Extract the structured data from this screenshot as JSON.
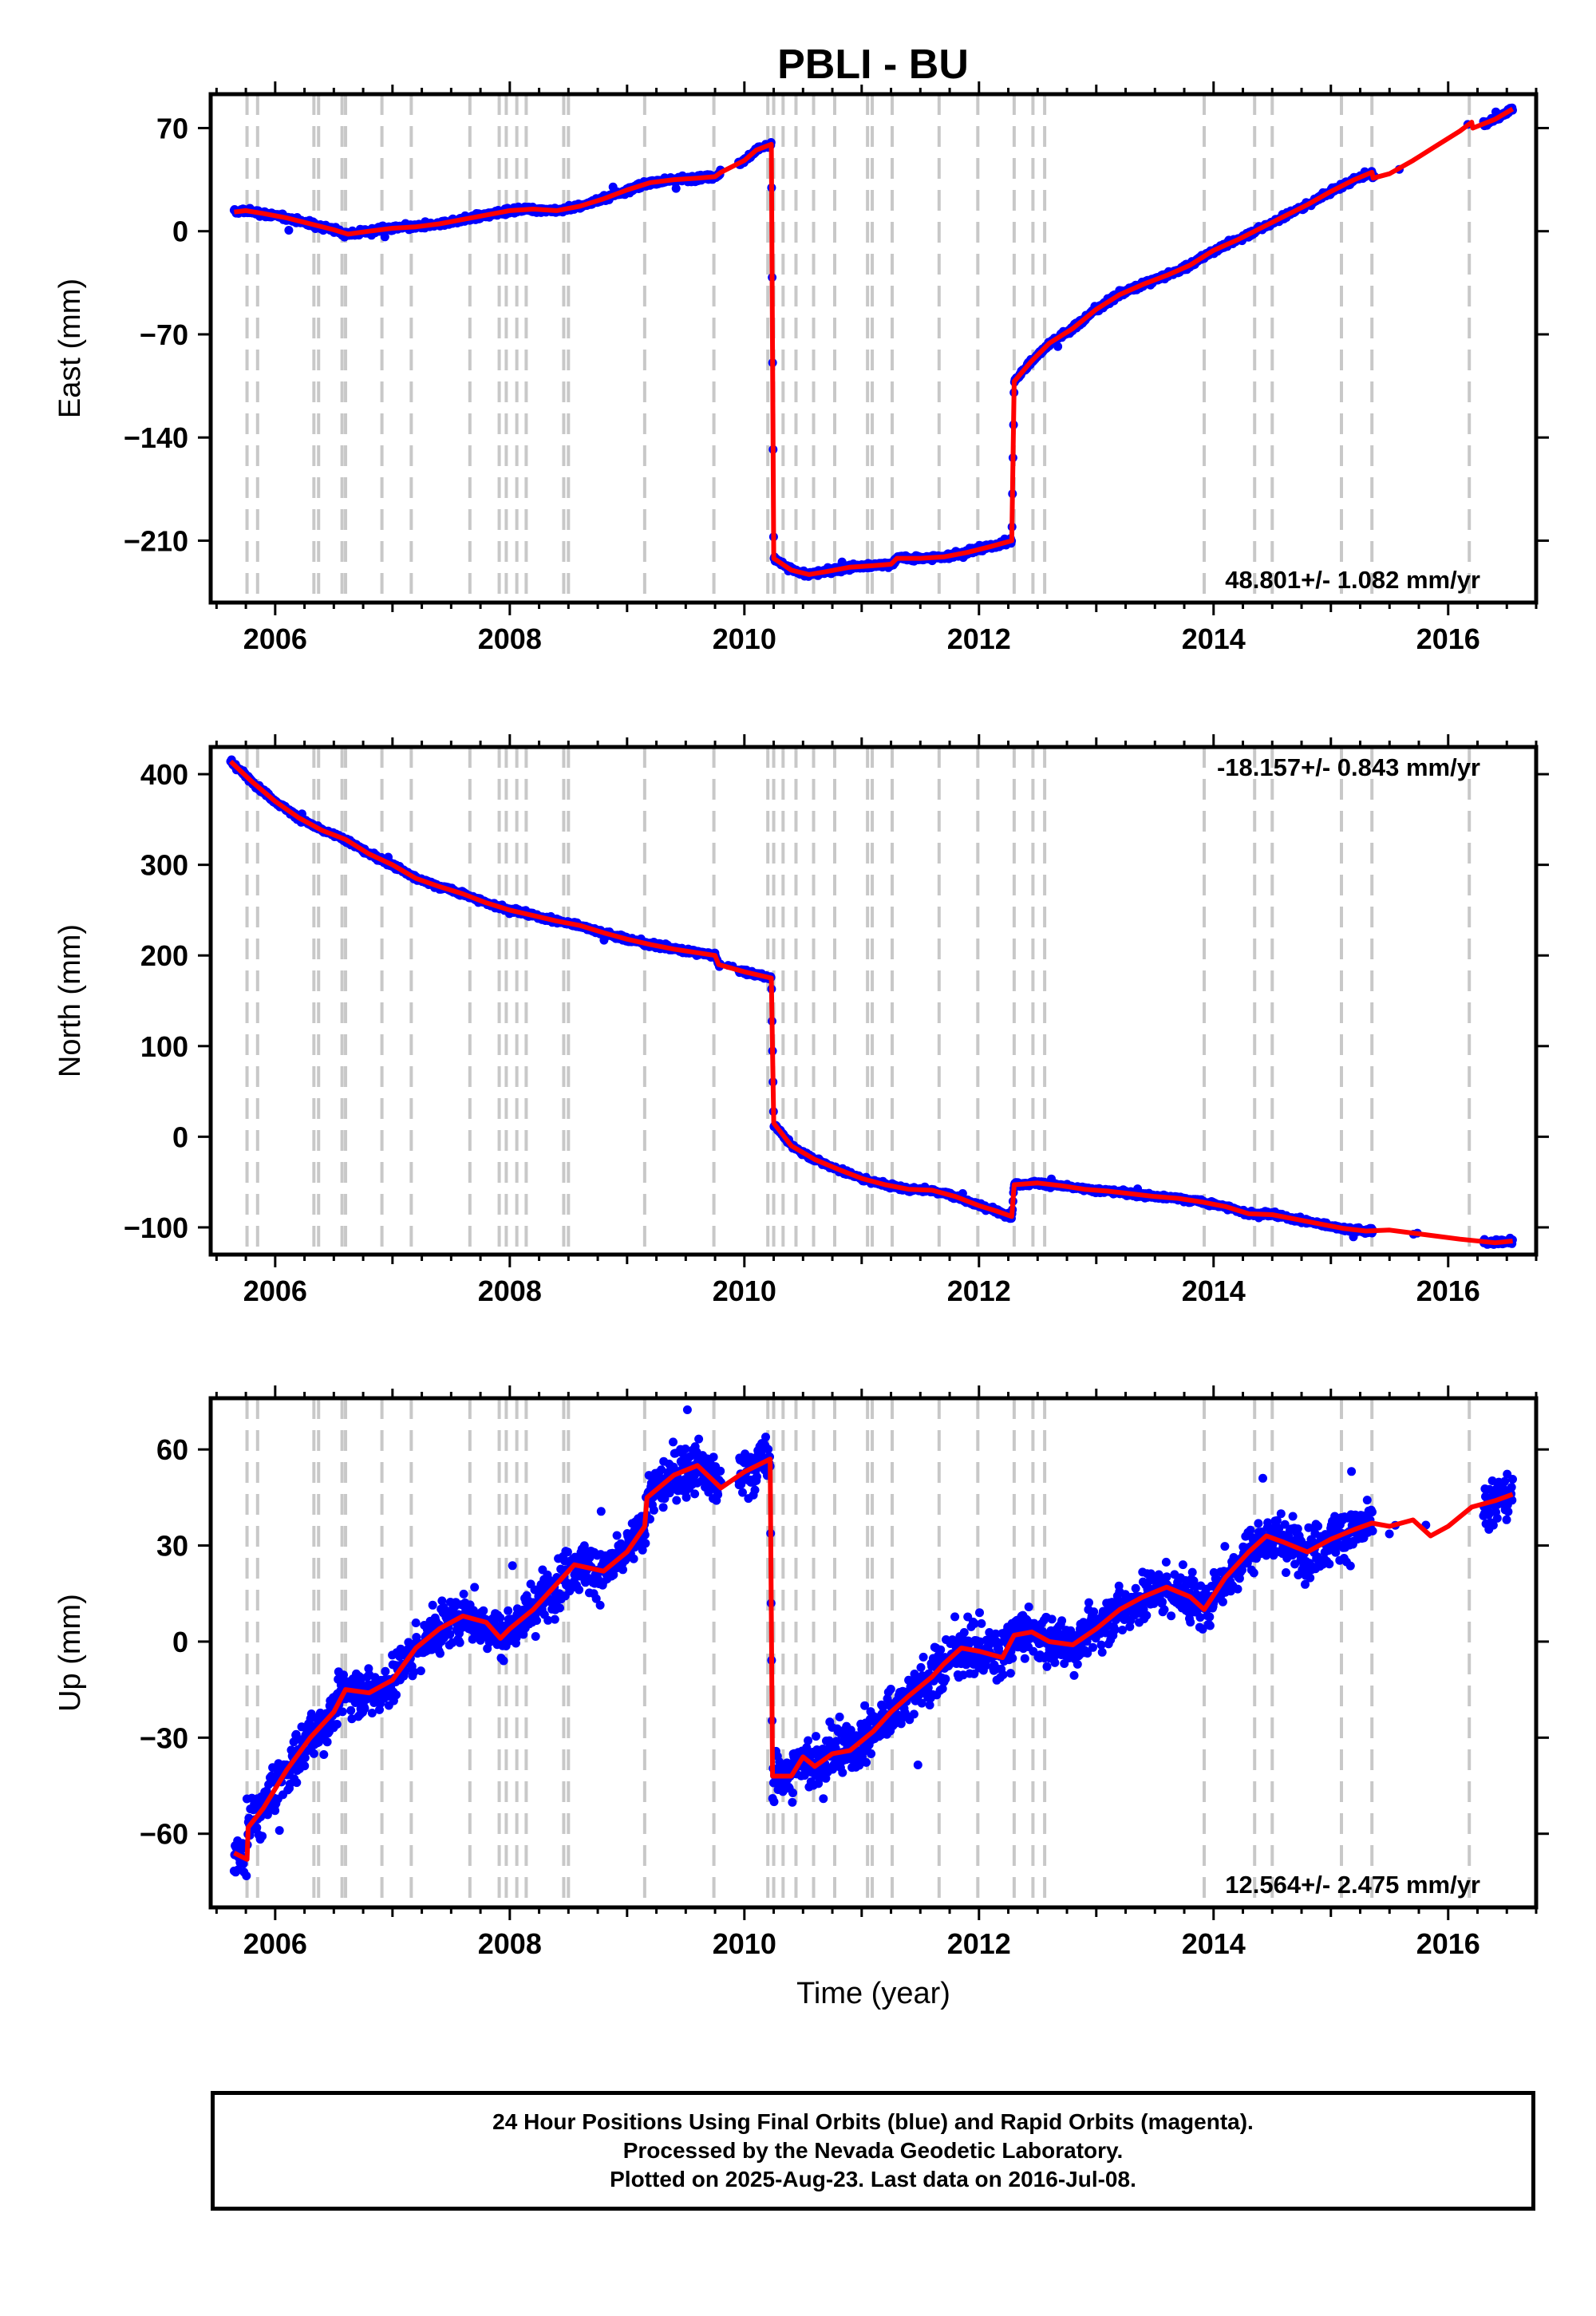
{
  "title": "PBLI - BU",
  "footer": {
    "line1": "24 Hour Positions Using Final Orbits (blue) and Rapid Orbits (magenta).",
    "line2": "Processed by the Nevada Geodetic Laboratory.",
    "line3": "Plotted on 2025-Aug-23. Last data on 2016-Jul-08."
  },
  "colors": {
    "final_orbits": "#0000ff",
    "model": "#ff0000",
    "equipment_change": "#c8c8c8",
    "axes": "#000000"
  },
  "chart_data": [
    {
      "type": "scatter",
      "ylabel": "East (mm)",
      "xlim": [
        2005.45,
        2016.75
      ],
      "ylim": [
        -252,
        93
      ],
      "yticks": [
        -210,
        -140,
        -70,
        0,
        70
      ],
      "xticks": [
        2006,
        2008,
        2010,
        2012,
        2014,
        2016
      ],
      "grid": false,
      "rate_label": "48.801+/- 1.082 mm/yr",
      "rate_position": "bottom-right",
      "offsets": [
        2005.76,
        2005.85,
        2006.33,
        2006.37,
        2006.57,
        2006.6,
        2006.91,
        2007.16,
        2007.66,
        2007.91,
        2007.97,
        2008.06,
        2008.14,
        2008.46,
        2008.5,
        2009.15,
        2009.74,
        2010.2,
        2010.25,
        2010.33,
        2010.44,
        2010.59,
        2010.77,
        2011.05,
        2011.09,
        2011.26,
        2011.66,
        2011.99,
        2012.3,
        2012.46,
        2012.56,
        2013.92,
        2014.35,
        2014.5,
        2015.09,
        2015.35,
        2016.18
      ],
      "model": [
        [
          2005.65,
          13
        ],
        [
          2005.75,
          14
        ],
        [
          2005.9,
          12
        ],
        [
          2006.1,
          9
        ],
        [
          2006.3,
          5
        ],
        [
          2006.5,
          1
        ],
        [
          2006.62,
          -2
        ],
        [
          2006.8,
          0
        ],
        [
          2007.0,
          2
        ],
        [
          2007.2,
          3
        ],
        [
          2007.4,
          5
        ],
        [
          2007.6,
          8
        ],
        [
          2007.8,
          11
        ],
        [
          2008.0,
          14
        ],
        [
          2008.2,
          15
        ],
        [
          2008.4,
          14
        ],
        [
          2008.6,
          17
        ],
        [
          2008.8,
          22
        ],
        [
          2009.0,
          28
        ],
        [
          2009.2,
          33
        ],
        [
          2009.4,
          35
        ],
        [
          2009.6,
          36
        ],
        [
          2009.75,
          37
        ],
        [
          2009.8,
          40
        ],
        [
          2010.0,
          48
        ],
        [
          2010.1,
          55
        ],
        [
          2010.23,
          59
        ],
        [
          2010.25,
          -222
        ],
        [
          2010.4,
          -230
        ],
        [
          2010.55,
          -233
        ],
        [
          2010.7,
          -231
        ],
        [
          2010.9,
          -228
        ],
        [
          2011.1,
          -227
        ],
        [
          2011.25,
          -226
        ],
        [
          2011.3,
          -222
        ],
        [
          2011.5,
          -222
        ],
        [
          2011.7,
          -221
        ],
        [
          2011.9,
          -218
        ],
        [
          2012.1,
          -214
        ],
        [
          2012.28,
          -210
        ],
        [
          2012.3,
          -102
        ],
        [
          2012.45,
          -88
        ],
        [
          2012.6,
          -76
        ],
        [
          2012.8,
          -66
        ],
        [
          2013.0,
          -53
        ],
        [
          2013.2,
          -43
        ],
        [
          2013.4,
          -36
        ],
        [
          2013.6,
          -30
        ],
        [
          2013.8,
          -23
        ],
        [
          2014.0,
          -13
        ],
        [
          2014.2,
          -6
        ],
        [
          2014.4,
          2
        ],
        [
          2014.6,
          10
        ],
        [
          2014.8,
          18
        ],
        [
          2015.0,
          27
        ],
        [
          2015.2,
          35
        ],
        [
          2015.35,
          40
        ],
        [
          2015.36,
          36
        ],
        [
          2015.5,
          39
        ],
        [
          2015.7,
          48
        ],
        [
          2015.9,
          58
        ],
        [
          2016.1,
          68
        ],
        [
          2016.2,
          74
        ],
        [
          2016.21,
          70
        ],
        [
          2016.4,
          76
        ],
        [
          2016.55,
          83
        ]
      ]
    },
    {
      "type": "scatter",
      "ylabel": "North (mm)",
      "xlim": [
        2005.45,
        2016.75
      ],
      "ylim": [
        -130,
        430
      ],
      "yticks": [
        -100,
        0,
        100,
        200,
        300,
        400
      ],
      "xticks": [
        2006,
        2008,
        2010,
        2012,
        2014,
        2016
      ],
      "grid": false,
      "rate_label": "-18.157+/- 0.843 mm/yr",
      "rate_position": "top-right",
      "offsets": [
        2005.76,
        2005.85,
        2006.33,
        2006.37,
        2006.57,
        2006.6,
        2006.91,
        2007.16,
        2007.66,
        2007.91,
        2007.97,
        2008.06,
        2008.14,
        2008.46,
        2008.5,
        2009.15,
        2009.74,
        2010.2,
        2010.25,
        2010.33,
        2010.44,
        2010.59,
        2010.77,
        2011.05,
        2011.09,
        2011.26,
        2011.66,
        2011.99,
        2012.3,
        2012.46,
        2012.56,
        2013.92,
        2014.35,
        2014.5,
        2015.09,
        2015.35,
        2016.18
      ],
      "model": [
        [
          2005.62,
          414
        ],
        [
          2005.8,
          392
        ],
        [
          2006.0,
          370
        ],
        [
          2006.2,
          352
        ],
        [
          2006.4,
          338
        ],
        [
          2006.6,
          328
        ],
        [
          2006.8,
          312
        ],
        [
          2007.0,
          300
        ],
        [
          2007.2,
          285
        ],
        [
          2007.4,
          276
        ],
        [
          2007.6,
          268
        ],
        [
          2007.8,
          258
        ],
        [
          2008.0,
          250
        ],
        [
          2008.2,
          244
        ],
        [
          2008.4,
          238
        ],
        [
          2008.6,
          233
        ],
        [
          2008.8,
          225
        ],
        [
          2009.0,
          218
        ],
        [
          2009.2,
          212
        ],
        [
          2009.4,
          207
        ],
        [
          2009.6,
          203
        ],
        [
          2009.75,
          200
        ],
        [
          2009.78,
          190
        ],
        [
          2010.0,
          182
        ],
        [
          2010.23,
          175
        ],
        [
          2010.25,
          15
        ],
        [
          2010.4,
          -10
        ],
        [
          2010.6,
          -25
        ],
        [
          2010.8,
          -36
        ],
        [
          2011.0,
          -46
        ],
        [
          2011.2,
          -53
        ],
        [
          2011.4,
          -58
        ],
        [
          2011.6,
          -59
        ],
        [
          2011.8,
          -66
        ],
        [
          2012.0,
          -76
        ],
        [
          2012.15,
          -82
        ],
        [
          2012.28,
          -88
        ],
        [
          2012.3,
          -53
        ],
        [
          2012.5,
          -51
        ],
        [
          2012.7,
          -54
        ],
        [
          2012.9,
          -58
        ],
        [
          2013.1,
          -60
        ],
        [
          2013.3,
          -63
        ],
        [
          2013.5,
          -66
        ],
        [
          2013.7,
          -68
        ],
        [
          2013.9,
          -72
        ],
        [
          2014.1,
          -77
        ],
        [
          2014.3,
          -85
        ],
        [
          2014.5,
          -86
        ],
        [
          2014.7,
          -91
        ],
        [
          2014.9,
          -96
        ],
        [
          2015.1,
          -101
        ],
        [
          2015.3,
          -104
        ],
        [
          2015.5,
          -103
        ],
        [
          2015.8,
          -108
        ],
        [
          2016.1,
          -113
        ],
        [
          2016.4,
          -117
        ],
        [
          2016.55,
          -115
        ]
      ]
    },
    {
      "type": "scatter",
      "xlabel": "Time (year)",
      "ylabel": "Up (mm)",
      "xlim": [
        2005.45,
        2016.75
      ],
      "ylim": [
        -83,
        76
      ],
      "yticks": [
        -60,
        -30,
        0,
        30,
        60
      ],
      "xticks": [
        2006,
        2008,
        2010,
        2012,
        2014,
        2016
      ],
      "grid": false,
      "rate_label": "12.564+/- 2.475 mm/yr",
      "rate_position": "bottom-right",
      "offsets": [
        2005.76,
        2005.85,
        2006.33,
        2006.37,
        2006.57,
        2006.6,
        2006.91,
        2007.16,
        2007.66,
        2007.91,
        2007.97,
        2008.06,
        2008.14,
        2008.46,
        2008.5,
        2009.15,
        2009.74,
        2010.2,
        2010.25,
        2010.33,
        2010.44,
        2010.59,
        2010.77,
        2011.05,
        2011.09,
        2011.26,
        2011.66,
        2011.99,
        2012.3,
        2012.46,
        2012.56,
        2013.92,
        2014.35,
        2014.5,
        2015.09,
        2015.35,
        2016.18
      ],
      "model": [
        [
          2005.65,
          -66
        ],
        [
          2005.76,
          -68
        ],
        [
          2005.77,
          -58
        ],
        [
          2005.9,
          -52
        ],
        [
          2006.1,
          -40
        ],
        [
          2006.3,
          -30
        ],
        [
          2006.5,
          -22
        ],
        [
          2006.6,
          -15
        ],
        [
          2006.8,
          -16
        ],
        [
          2007.0,
          -12
        ],
        [
          2007.2,
          -2
        ],
        [
          2007.4,
          4
        ],
        [
          2007.6,
          8
        ],
        [
          2007.8,
          6
        ],
        [
          2007.92,
          1
        ],
        [
          2008.0,
          4
        ],
        [
          2008.2,
          10
        ],
        [
          2008.4,
          18
        ],
        [
          2008.55,
          24
        ],
        [
          2008.8,
          22
        ],
        [
          2009.0,
          28
        ],
        [
          2009.15,
          36
        ],
        [
          2009.17,
          45
        ],
        [
          2009.4,
          52
        ],
        [
          2009.6,
          55
        ],
        [
          2009.8,
          48
        ],
        [
          2010.0,
          53
        ],
        [
          2010.22,
          57
        ],
        [
          2010.24,
          -42
        ],
        [
          2010.4,
          -42
        ],
        [
          2010.5,
          -36
        ],
        [
          2010.6,
          -39
        ],
        [
          2010.75,
          -35
        ],
        [
          2010.9,
          -34
        ],
        [
          2011.1,
          -28
        ],
        [
          2011.25,
          -22
        ],
        [
          2011.4,
          -17
        ],
        [
          2011.6,
          -11
        ],
        [
          2011.7,
          -7
        ],
        [
          2011.85,
          -2
        ],
        [
          2012.0,
          -3
        ],
        [
          2012.2,
          -5
        ],
        [
          2012.3,
          2
        ],
        [
          2012.45,
          3
        ],
        [
          2012.6,
          0
        ],
        [
          2012.8,
          -1
        ],
        [
          2013.0,
          4
        ],
        [
          2013.2,
          10
        ],
        [
          2013.4,
          14
        ],
        [
          2013.6,
          17
        ],
        [
          2013.8,
          14
        ],
        [
          2013.92,
          10
        ],
        [
          2014.1,
          20
        ],
        [
          2014.3,
          28
        ],
        [
          2014.45,
          33
        ],
        [
          2014.6,
          31
        ],
        [
          2014.8,
          28
        ],
        [
          2015.0,
          32
        ],
        [
          2015.2,
          35
        ],
        [
          2015.35,
          37
        ],
        [
          2015.5,
          36
        ],
        [
          2015.7,
          38
        ],
        [
          2015.85,
          33
        ],
        [
          2016.0,
          36
        ],
        [
          2016.2,
          42
        ],
        [
          2016.4,
          44
        ],
        [
          2016.55,
          46
        ]
      ]
    }
  ]
}
